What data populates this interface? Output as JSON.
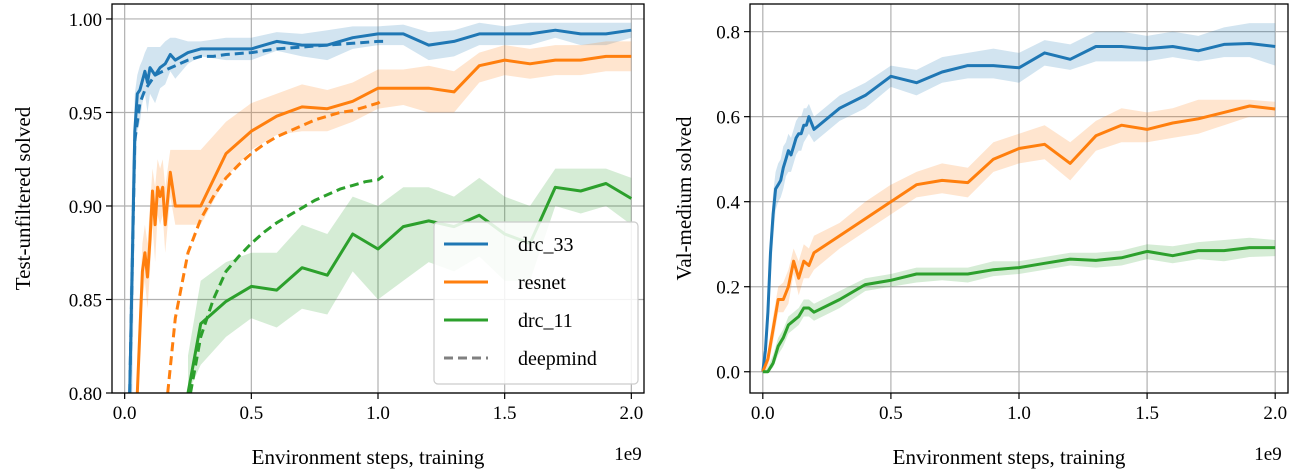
{
  "chart_data": [
    {
      "type": "line",
      "xlabel": "Environment steps, training",
      "ylabel": "Test-unfiltered solved",
      "x_offset_label": "1e9",
      "xlim": [
        -0.05,
        2.05
      ],
      "ylim": [
        0.8,
        1.008
      ],
      "xticks": [
        0.0,
        0.5,
        1.0,
        1.5,
        2.0
      ],
      "xtick_labels": [
        "0.0",
        "0.5",
        "1.0",
        "1.5",
        "2.0"
      ],
      "yticks": [
        0.8,
        0.85,
        0.9,
        0.95,
        1.0
      ],
      "ytick_labels": [
        "0.80",
        "0.85",
        "0.90",
        "0.95",
        "1.00"
      ],
      "grid": true,
      "legend_placement": "lower-right",
      "legend": [
        {
          "label": "drc_33",
          "color": "#1f77b4",
          "style": "solid"
        },
        {
          "label": "resnet",
          "color": "#ff7f0e",
          "style": "solid"
        },
        {
          "label": "drc_11",
          "color": "#2ca02c",
          "style": "solid"
        },
        {
          "label": "deepmind",
          "color": "#808080",
          "style": "dashed"
        }
      ],
      "series": [
        {
          "name": "drc_33",
          "color": "#1f77b4",
          "style": "solid",
          "x": [
            0.02,
            0.03,
            0.04,
            0.05,
            0.06,
            0.07,
            0.08,
            0.09,
            0.1,
            0.12,
            0.14,
            0.16,
            0.18,
            0.2,
            0.25,
            0.3,
            0.4,
            0.5,
            0.6,
            0.7,
            0.8,
            0.9,
            1.0,
            1.1,
            1.2,
            1.3,
            1.4,
            1.5,
            1.6,
            1.7,
            1.8,
            1.9,
            2.0
          ],
          "y": [
            0.8,
            0.87,
            0.94,
            0.96,
            0.962,
            0.967,
            0.972,
            0.966,
            0.974,
            0.97,
            0.974,
            0.976,
            0.981,
            0.978,
            0.982,
            0.984,
            0.984,
            0.984,
            0.988,
            0.986,
            0.986,
            0.99,
            0.992,
            0.992,
            0.986,
            0.988,
            0.992,
            0.992,
            0.992,
            0.994,
            0.992,
            0.992,
            0.994
          ],
          "band_upper": [
            0.85,
            0.92,
            0.96,
            0.97,
            0.975,
            0.978,
            0.982,
            0.985,
            0.985,
            0.985,
            0.985,
            0.988,
            0.99,
            0.99,
            0.988,
            0.988,
            0.99,
            0.99,
            0.993,
            0.992,
            0.994,
            0.996,
            0.996,
            0.997,
            0.993,
            0.994,
            0.998,
            0.996,
            0.998,
            0.998,
            0.998,
            0.998,
            0.998
          ],
          "band_lower": [
            0.8,
            0.8,
            0.9,
            0.94,
            0.945,
            0.955,
            0.96,
            0.95,
            0.96,
            0.955,
            0.963,
            0.965,
            0.972,
            0.968,
            0.976,
            0.98,
            0.978,
            0.978,
            0.983,
            0.98,
            0.978,
            0.984,
            0.986,
            0.986,
            0.978,
            0.98,
            0.986,
            0.986,
            0.986,
            0.99,
            0.986,
            0.986,
            0.99
          ]
        },
        {
          "name": "resnet",
          "color": "#ff7f0e",
          "style": "solid",
          "x": [
            0.05,
            0.07,
            0.08,
            0.09,
            0.1,
            0.11,
            0.12,
            0.13,
            0.14,
            0.15,
            0.16,
            0.18,
            0.2,
            0.3,
            0.4,
            0.5,
            0.6,
            0.7,
            0.8,
            0.9,
            1.0,
            1.1,
            1.2,
            1.3,
            1.4,
            1.5,
            1.6,
            1.7,
            1.8,
            1.9,
            2.0
          ],
          "y": [
            0.8,
            0.865,
            0.875,
            0.862,
            0.882,
            0.908,
            0.89,
            0.91,
            0.905,
            0.91,
            0.89,
            0.918,
            0.9,
            0.9,
            0.928,
            0.94,
            0.948,
            0.953,
            0.952,
            0.956,
            0.963,
            0.963,
            0.963,
            0.961,
            0.975,
            0.978,
            0.976,
            0.978,
            0.978,
            0.98,
            0.98
          ],
          "band_upper": [
            0.82,
            0.88,
            0.89,
            0.88,
            0.9,
            0.92,
            0.91,
            0.925,
            0.92,
            0.925,
            0.91,
            0.93,
            0.93,
            0.93,
            0.945,
            0.955,
            0.96,
            0.965,
            0.962,
            0.966,
            0.973,
            0.973,
            0.975,
            0.972,
            0.982,
            0.986,
            0.984,
            0.986,
            0.986,
            0.988,
            0.988
          ],
          "band_lower": [
            0.8,
            0.85,
            0.86,
            0.845,
            0.865,
            0.89,
            0.87,
            0.895,
            0.89,
            0.895,
            0.875,
            0.905,
            0.89,
            0.89,
            0.915,
            0.93,
            0.938,
            0.94,
            0.94,
            0.945,
            0.952,
            0.954,
            0.95,
            0.95,
            0.966,
            0.97,
            0.968,
            0.97,
            0.97,
            0.972,
            0.972
          ]
        },
        {
          "name": "drc_11",
          "color": "#2ca02c",
          "style": "solid",
          "x": [
            0.25,
            0.3,
            0.4,
            0.5,
            0.6,
            0.7,
            0.8,
            0.9,
            1.0,
            1.1,
            1.2,
            1.3,
            1.4,
            1.5,
            1.6,
            1.7,
            1.8,
            1.9,
            2.0
          ],
          "y": [
            0.8,
            0.837,
            0.849,
            0.857,
            0.855,
            0.867,
            0.863,
            0.885,
            0.877,
            0.889,
            0.892,
            0.889,
            0.895,
            0.885,
            0.88,
            0.91,
            0.908,
            0.912,
            0.904
          ],
          "band_upper": [
            0.82,
            0.86,
            0.87,
            0.875,
            0.875,
            0.89,
            0.885,
            0.905,
            0.9,
            0.91,
            0.91,
            0.905,
            0.915,
            0.905,
            0.9,
            0.92,
            0.92,
            0.92,
            0.915
          ],
          "band_lower": [
            0.8,
            0.815,
            0.83,
            0.84,
            0.835,
            0.845,
            0.842,
            0.865,
            0.85,
            0.86,
            0.87,
            0.865,
            0.873,
            0.86,
            0.86,
            0.9,
            0.896,
            0.9,
            0.89
          ]
        },
        {
          "name": "drc_33 deepmind",
          "color": "#1f77b4",
          "style": "dashed",
          "x": [
            0.02,
            0.04,
            0.06,
            0.08,
            0.1,
            0.12,
            0.15,
            0.2,
            0.25,
            0.3,
            0.35,
            0.4,
            0.5,
            0.6,
            0.7,
            0.8,
            0.9,
            1.0,
            1.02
          ],
          "y": [
            0.8,
            0.935,
            0.955,
            0.962,
            0.966,
            0.97,
            0.972,
            0.975,
            0.978,
            0.98,
            0.98,
            0.981,
            0.982,
            0.984,
            0.985,
            0.986,
            0.987,
            0.988,
            0.988
          ]
        },
        {
          "name": "resnet deepmind",
          "color": "#ff7f0e",
          "style": "dashed",
          "x": [
            0.17,
            0.2,
            0.25,
            0.3,
            0.35,
            0.4,
            0.45,
            0.5,
            0.55,
            0.6,
            0.65,
            0.7,
            0.75,
            0.8,
            0.85,
            0.9,
            0.95,
            1.0,
            1.02
          ],
          "y": [
            0.8,
            0.84,
            0.875,
            0.893,
            0.905,
            0.915,
            0.922,
            0.928,
            0.933,
            0.937,
            0.94,
            0.943,
            0.946,
            0.948,
            0.95,
            0.951,
            0.953,
            0.955,
            0.957
          ]
        },
        {
          "name": "drc_11 deepmind",
          "color": "#2ca02c",
          "style": "dashed",
          "x": [
            0.26,
            0.3,
            0.35,
            0.4,
            0.45,
            0.5,
            0.55,
            0.6,
            0.65,
            0.7,
            0.75,
            0.8,
            0.85,
            0.9,
            0.95,
            1.0,
            1.02
          ],
          "y": [
            0.8,
            0.83,
            0.85,
            0.865,
            0.873,
            0.88,
            0.886,
            0.891,
            0.895,
            0.899,
            0.903,
            0.906,
            0.909,
            0.911,
            0.913,
            0.914,
            0.916
          ]
        }
      ]
    },
    {
      "type": "line",
      "xlabel": "Environment steps, training",
      "ylabel": "Val-medium solved",
      "x_offset_label": "1e9",
      "xlim": [
        -0.05,
        2.05
      ],
      "ylim": [
        -0.05,
        0.865
      ],
      "xticks": [
        0.0,
        0.5,
        1.0,
        1.5,
        2.0
      ],
      "xtick_labels": [
        "0.0",
        "0.5",
        "1.0",
        "1.5",
        "2.0"
      ],
      "yticks": [
        0.0,
        0.2,
        0.4,
        0.6,
        0.8
      ],
      "ytick_labels": [
        "0.0",
        "0.2",
        "0.4",
        "0.6",
        "0.8"
      ],
      "grid": true,
      "series": [
        {
          "name": "drc_33",
          "color": "#1f77b4",
          "style": "solid",
          "x": [
            0.0,
            0.01,
            0.02,
            0.03,
            0.04,
            0.05,
            0.06,
            0.07,
            0.08,
            0.09,
            0.1,
            0.11,
            0.12,
            0.13,
            0.14,
            0.15,
            0.16,
            0.17,
            0.18,
            0.2,
            0.3,
            0.4,
            0.5,
            0.6,
            0.7,
            0.8,
            0.9,
            1.0,
            1.1,
            1.2,
            1.3,
            1.4,
            1.5,
            1.6,
            1.7,
            1.8,
            1.9,
            2.0
          ],
          "y": [
            0.0,
            0.05,
            0.14,
            0.28,
            0.37,
            0.43,
            0.44,
            0.45,
            0.48,
            0.5,
            0.52,
            0.51,
            0.53,
            0.55,
            0.56,
            0.56,
            0.58,
            0.58,
            0.6,
            0.57,
            0.62,
            0.65,
            0.695,
            0.68,
            0.705,
            0.72,
            0.72,
            0.715,
            0.75,
            0.735,
            0.765,
            0.765,
            0.76,
            0.765,
            0.755,
            0.77,
            0.772,
            0.765
          ],
          "band_upper": [
            0.0,
            0.08,
            0.2,
            0.33,
            0.42,
            0.47,
            0.49,
            0.5,
            0.53,
            0.54,
            0.56,
            0.55,
            0.57,
            0.59,
            0.6,
            0.6,
            0.62,
            0.62,
            0.63,
            0.6,
            0.65,
            0.68,
            0.72,
            0.71,
            0.74,
            0.75,
            0.76,
            0.75,
            0.78,
            0.77,
            0.8,
            0.8,
            0.79,
            0.8,
            0.79,
            0.81,
            0.82,
            0.82
          ],
          "band_lower": [
            0.0,
            0.02,
            0.09,
            0.22,
            0.31,
            0.38,
            0.4,
            0.41,
            0.43,
            0.46,
            0.47,
            0.47,
            0.49,
            0.51,
            0.52,
            0.52,
            0.54,
            0.55,
            0.56,
            0.54,
            0.59,
            0.62,
            0.67,
            0.65,
            0.68,
            0.69,
            0.69,
            0.68,
            0.72,
            0.71,
            0.73,
            0.73,
            0.73,
            0.74,
            0.73,
            0.74,
            0.74,
            0.72
          ]
        },
        {
          "name": "resnet",
          "color": "#ff7f0e",
          "style": "solid",
          "x": [
            0.0,
            0.02,
            0.04,
            0.06,
            0.08,
            0.1,
            0.12,
            0.14,
            0.16,
            0.18,
            0.2,
            0.3,
            0.4,
            0.5,
            0.6,
            0.7,
            0.8,
            0.9,
            1.0,
            1.1,
            1.2,
            1.3,
            1.4,
            1.5,
            1.6,
            1.7,
            1.8,
            1.9,
            2.0
          ],
          "y": [
            0.0,
            0.03,
            0.1,
            0.17,
            0.17,
            0.2,
            0.26,
            0.22,
            0.26,
            0.25,
            0.28,
            0.32,
            0.36,
            0.4,
            0.44,
            0.45,
            0.445,
            0.5,
            0.525,
            0.535,
            0.49,
            0.555,
            0.58,
            0.57,
            0.585,
            0.595,
            0.61,
            0.625,
            0.618
          ],
          "band_upper": [
            0.0,
            0.05,
            0.13,
            0.2,
            0.21,
            0.24,
            0.29,
            0.26,
            0.3,
            0.29,
            0.32,
            0.35,
            0.4,
            0.44,
            0.47,
            0.49,
            0.48,
            0.54,
            0.56,
            0.58,
            0.54,
            0.59,
            0.62,
            0.61,
            0.62,
            0.64,
            0.64,
            0.64,
            0.635
          ],
          "band_lower": [
            0.0,
            0.01,
            0.07,
            0.14,
            0.14,
            0.16,
            0.23,
            0.18,
            0.22,
            0.22,
            0.24,
            0.29,
            0.33,
            0.37,
            0.41,
            0.42,
            0.41,
            0.47,
            0.49,
            0.5,
            0.45,
            0.52,
            0.54,
            0.54,
            0.55,
            0.56,
            0.58,
            0.6,
            0.6
          ]
        },
        {
          "name": "drc_11",
          "color": "#2ca02c",
          "style": "solid",
          "x": [
            0.0,
            0.02,
            0.04,
            0.06,
            0.08,
            0.1,
            0.12,
            0.14,
            0.16,
            0.18,
            0.2,
            0.3,
            0.4,
            0.5,
            0.6,
            0.7,
            0.8,
            0.9,
            1.0,
            1.1,
            1.2,
            1.3,
            1.4,
            1.5,
            1.6,
            1.7,
            1.8,
            1.9,
            2.0
          ],
          "y": [
            0.0,
            0.0,
            0.02,
            0.06,
            0.08,
            0.11,
            0.12,
            0.13,
            0.15,
            0.15,
            0.14,
            0.17,
            0.205,
            0.215,
            0.23,
            0.23,
            0.23,
            0.24,
            0.245,
            0.255,
            0.265,
            0.262,
            0.268,
            0.283,
            0.273,
            0.285,
            0.285,
            0.292,
            0.292
          ],
          "band_upper": [
            0.0,
            0.01,
            0.04,
            0.08,
            0.1,
            0.13,
            0.14,
            0.15,
            0.17,
            0.17,
            0.16,
            0.19,
            0.22,
            0.23,
            0.245,
            0.245,
            0.245,
            0.26,
            0.26,
            0.27,
            0.28,
            0.28,
            0.285,
            0.3,
            0.295,
            0.305,
            0.31,
            0.315,
            0.31
          ],
          "band_lower": [
            0.0,
            0.0,
            0.01,
            0.04,
            0.06,
            0.09,
            0.1,
            0.11,
            0.13,
            0.13,
            0.12,
            0.15,
            0.19,
            0.2,
            0.21,
            0.215,
            0.21,
            0.225,
            0.23,
            0.24,
            0.25,
            0.245,
            0.25,
            0.265,
            0.255,
            0.265,
            0.26,
            0.27,
            0.272
          ]
        }
      ]
    }
  ]
}
